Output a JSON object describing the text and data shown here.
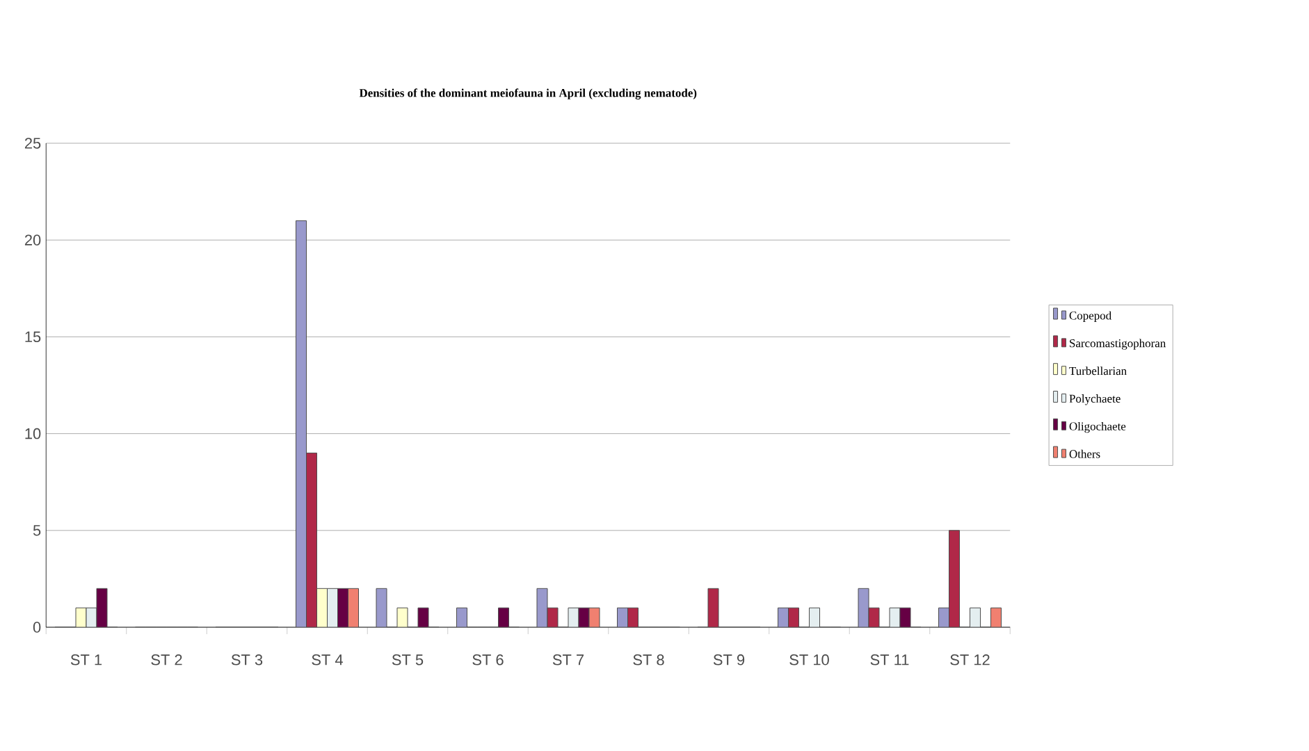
{
  "chart_data": {
    "type": "bar",
    "title": "Densities of the dominant meiofauna in April (excluding nematode)",
    "categories": [
      "ST 1",
      "ST 2",
      "ST 3",
      "ST 4",
      "ST 5",
      "ST 6",
      "ST 7",
      "ST 8",
      "ST 9",
      "ST 10",
      "ST 11",
      "ST 12"
    ],
    "series": [
      {
        "name": "Copepod",
        "color": "#9999cc",
        "values": [
          0,
          0,
          0,
          21,
          2,
          1,
          2,
          1,
          0,
          1,
          2,
          1
        ]
      },
      {
        "name": "Sarcomastigophoran",
        "color": "#b02848",
        "values": [
          0,
          0,
          0,
          9,
          0,
          0,
          1,
          1,
          2,
          1,
          1,
          5
        ]
      },
      {
        "name": "Turbellarian",
        "color": "#ffffcc",
        "values": [
          1,
          0,
          0,
          2,
          1,
          0,
          0,
          0,
          0,
          0,
          0,
          0
        ]
      },
      {
        "name": "Polychaete",
        "color": "#e4eef0",
        "values": [
          1,
          0,
          0,
          2,
          0,
          0,
          1,
          0,
          0,
          1,
          1,
          1
        ]
      },
      {
        "name": "Oligochaete",
        "color": "#660044",
        "values": [
          2,
          0,
          0,
          2,
          1,
          1,
          1,
          0,
          0,
          0,
          1,
          0
        ]
      },
      {
        "name": "Others",
        "color": "#f08070",
        "values": [
          0,
          0,
          0,
          2,
          0,
          0,
          1,
          0,
          0,
          0,
          0,
          1
        ]
      }
    ],
    "ylim": [
      0,
      25
    ],
    "yticks": [
      0,
      5,
      10,
      15,
      20,
      25
    ],
    "grid": "y",
    "legend": "right"
  }
}
